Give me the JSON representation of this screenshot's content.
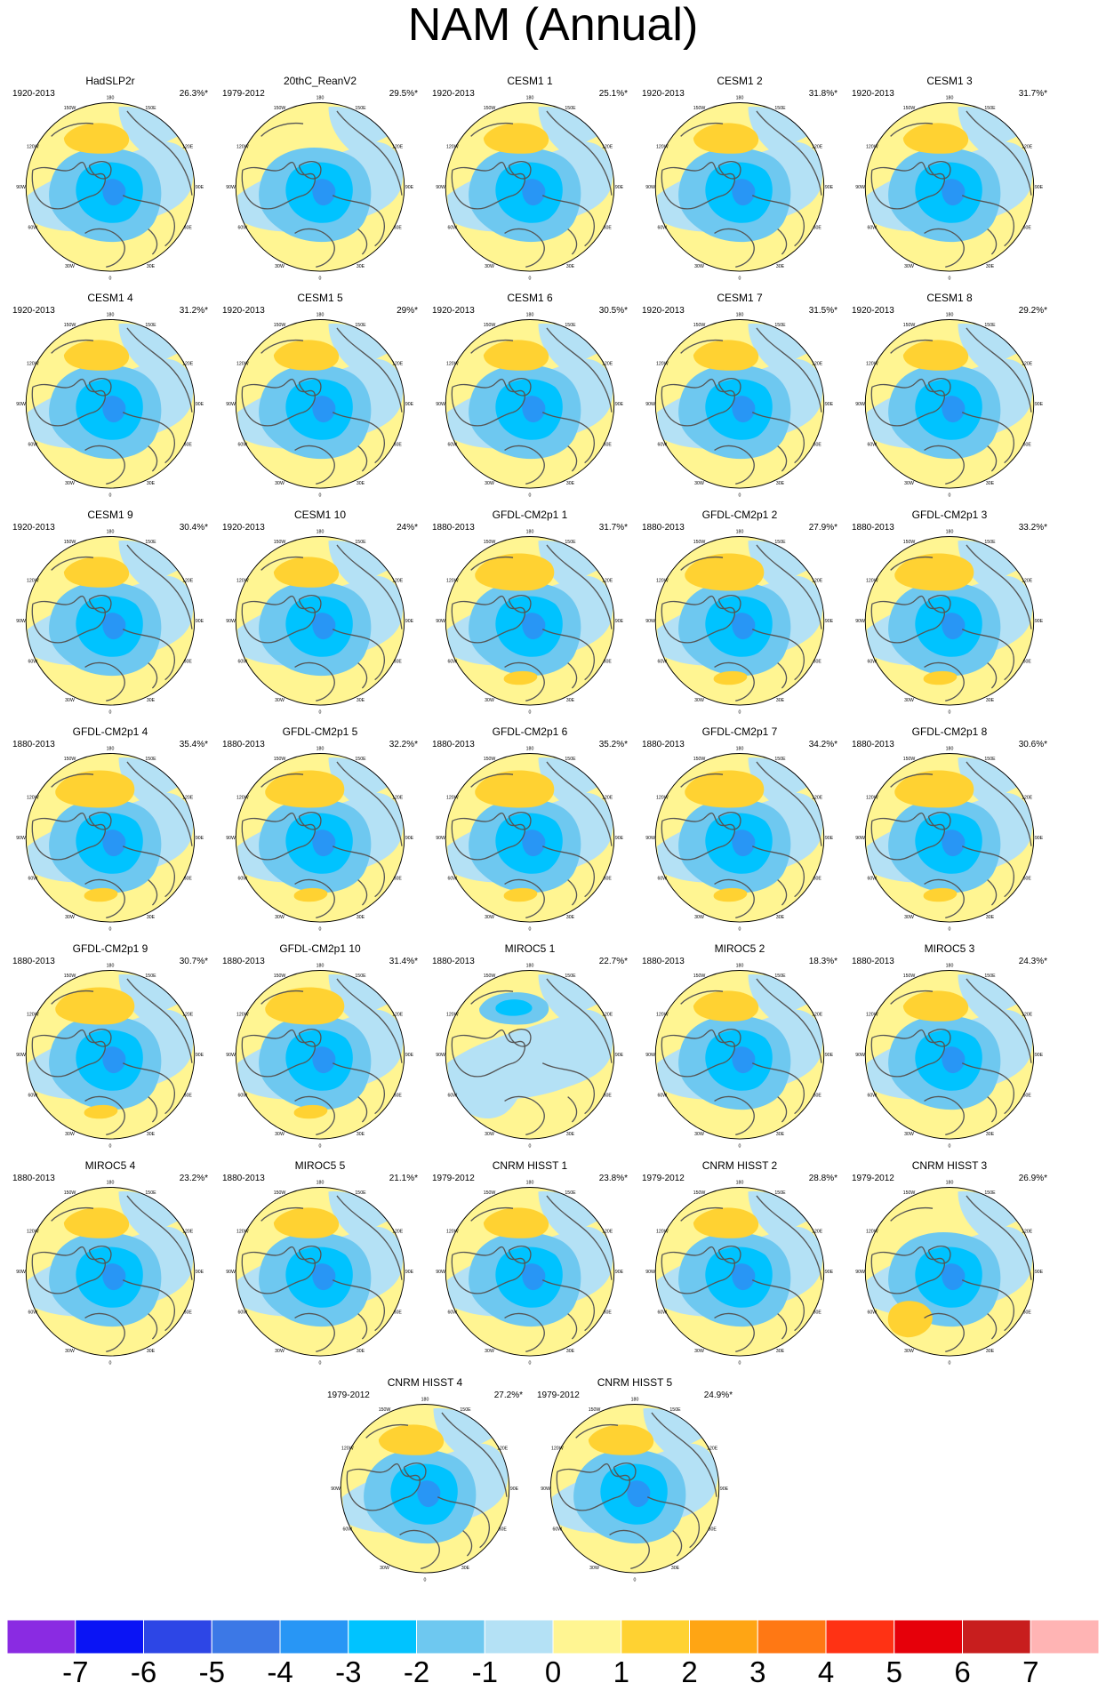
{
  "title": "NAM (Annual)",
  "map_labels": {
    "top": "180",
    "upper_left": "150W",
    "upper_right": "150E",
    "left_upper": "120W",
    "right_upper": "120E",
    "left": "90W",
    "right": "90E",
    "left_lower": "60W",
    "right_lower": "60E",
    "lower_left": "30W",
    "lower_right": "30E",
    "bottom": "0"
  },
  "colors": {
    "land_outline": "#555555",
    "frame": "#000000"
  },
  "panels": [
    {
      "title": "HadSLP2r",
      "period": "1920-2013",
      "variance": "26.3%*",
      "pattern": "cesm"
    },
    {
      "title": "20thC_ReanV2",
      "period": "1979-2012",
      "variance": "29.5%*",
      "pattern": "rean"
    },
    {
      "title": "CESM1 1",
      "period": "1920-2013",
      "variance": "25.1%*",
      "pattern": "cesm"
    },
    {
      "title": "CESM1 2",
      "period": "1920-2013",
      "variance": "31.8%*",
      "pattern": "cesm"
    },
    {
      "title": "CESM1 3",
      "period": "1920-2013",
      "variance": "31.7%*",
      "pattern": "cesm"
    },
    {
      "title": "CESM1 4",
      "period": "1920-2013",
      "variance": "31.2%*",
      "pattern": "cesm"
    },
    {
      "title": "CESM1 5",
      "period": "1920-2013",
      "variance": "29%*",
      "pattern": "cesm"
    },
    {
      "title": "CESM1 6",
      "period": "1920-2013",
      "variance": "30.5%*",
      "pattern": "cesm"
    },
    {
      "title": "CESM1 7",
      "period": "1920-2013",
      "variance": "31.5%*",
      "pattern": "cesm"
    },
    {
      "title": "CESM1 8",
      "period": "1920-2013",
      "variance": "29.2%*",
      "pattern": "cesm"
    },
    {
      "title": "CESM1 9",
      "period": "1920-2013",
      "variance": "30.4%*",
      "pattern": "cesm"
    },
    {
      "title": "CESM1 10",
      "period": "1920-2013",
      "variance": "24%*",
      "pattern": "cesm"
    },
    {
      "title": "GFDL-CM2p1 1",
      "period": "1880-2013",
      "variance": "31.7%*",
      "pattern": "gfdl"
    },
    {
      "title": "GFDL-CM2p1 2",
      "period": "1880-2013",
      "variance": "27.9%*",
      "pattern": "gfdl"
    },
    {
      "title": "GFDL-CM2p1 3",
      "period": "1880-2013",
      "variance": "33.2%*",
      "pattern": "gfdl"
    },
    {
      "title": "GFDL-CM2p1 4",
      "period": "1880-2013",
      "variance": "35.4%*",
      "pattern": "gfdl"
    },
    {
      "title": "GFDL-CM2p1 5",
      "period": "1880-2013",
      "variance": "32.2%*",
      "pattern": "gfdl"
    },
    {
      "title": "GFDL-CM2p1 6",
      "period": "1880-2013",
      "variance": "35.2%*",
      "pattern": "gfdl"
    },
    {
      "title": "GFDL-CM2p1 7",
      "period": "1880-2013",
      "variance": "34.2%*",
      "pattern": "gfdl"
    },
    {
      "title": "GFDL-CM2p1 8",
      "period": "1880-2013",
      "variance": "30.6%*",
      "pattern": "gfdl"
    },
    {
      "title": "GFDL-CM2p1 9",
      "period": "1880-2013",
      "variance": "30.7%*",
      "pattern": "gfdl"
    },
    {
      "title": "GFDL-CM2p1 10",
      "period": "1880-2013",
      "variance": "31.4%*",
      "pattern": "gfdl"
    },
    {
      "title": "MIROC5 1",
      "period": "1880-2013",
      "variance": "22.7%*",
      "pattern": "miroc1"
    },
    {
      "title": "MIROC5 2",
      "period": "1880-2013",
      "variance": "18.3%*",
      "pattern": "miroc"
    },
    {
      "title": "MIROC5 3",
      "period": "1880-2013",
      "variance": "24.3%*",
      "pattern": "miroc"
    },
    {
      "title": "MIROC5 4",
      "period": "1880-2013",
      "variance": "23.2%*",
      "pattern": "miroc"
    },
    {
      "title": "MIROC5 5",
      "period": "1880-2013",
      "variance": "21.1%*",
      "pattern": "miroc"
    },
    {
      "title": "CNRM HISST 1",
      "period": "1979-2012",
      "variance": "23.8%*",
      "pattern": "cnrm"
    },
    {
      "title": "CNRM HISST 2",
      "period": "1979-2012",
      "variance": "28.8%*",
      "pattern": "cnrm"
    },
    {
      "title": "CNRM HISST 3",
      "period": "1979-2012",
      "variance": "26.9%*",
      "pattern": "cnrm3"
    },
    {
      "title": "CNRM HISST 4",
      "period": "1979-2012",
      "variance": "27.2%*",
      "pattern": "cnrm"
    },
    {
      "title": "CNRM HISST 5",
      "period": "1979-2012",
      "variance": "24.9%*",
      "pattern": "cnrm"
    }
  ],
  "colorbar": {
    "levels": [
      -7,
      -6,
      -5,
      -4,
      -3,
      -2,
      -1,
      0,
      1,
      2,
      3,
      4,
      5,
      6,
      7
    ],
    "tick_labels": [
      "-7",
      "-6",
      "-5",
      "-4",
      "-3",
      "-2",
      "-1",
      "0",
      "1",
      "2",
      "3",
      "4",
      "5",
      "6",
      "7"
    ],
    "colors": [
      "#8a2be2",
      "#0a14f5",
      "#2d46e6",
      "#3c78e6",
      "#2896f5",
      "#00c3ff",
      "#6ec8f0",
      "#b4e1f5",
      "#fff592",
      "#ffd232",
      "#ffa514",
      "#ff7814",
      "#ff3214",
      "#e6000a",
      "#c81e1e",
      "#ffb4b4"
    ]
  }
}
